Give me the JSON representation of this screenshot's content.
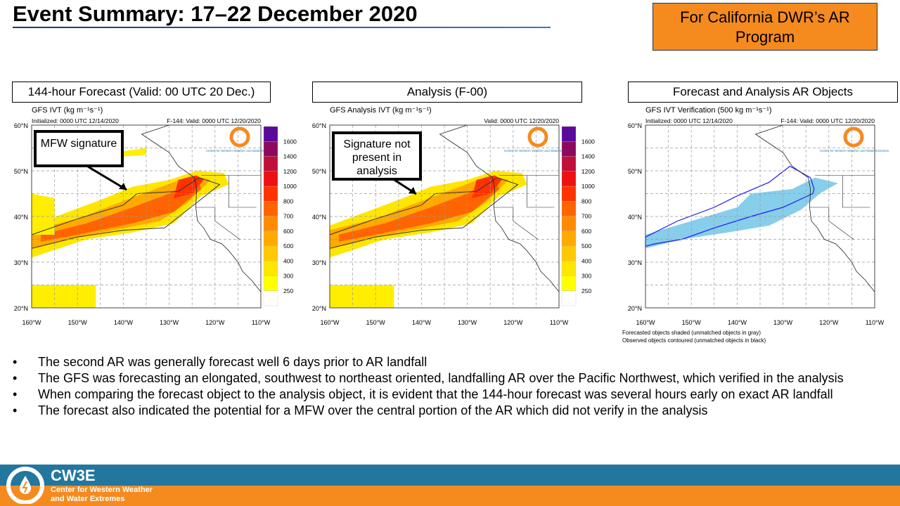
{
  "title": "Event Summary: 17–22 December 2020",
  "badge": "For California DWR’s AR Program",
  "panels": [
    {
      "header": "144-hour Forecast (Valid: 00 UTC 20 Dec.)",
      "plot_title": "GFS IVT (kg m⁻¹s⁻¹)",
      "left_info": "Initialized: 0000 UTC 12/14/2020",
      "right_info": "F-144: Valid: 0000 UTC 12/20/2020",
      "callout": "MFW signature",
      "mode": "forecast"
    },
    {
      "header": "Analysis (F-00)",
      "plot_title": "GFS Analysis IVT (kg m⁻¹s⁻¹)",
      "left_info": "",
      "right_info": "Valid: 0000 UTC 12/20/2020",
      "callout": "Signature not present in analysis",
      "mode": "analysis"
    },
    {
      "header": "Forecast and Analysis AR Objects",
      "plot_title": "GFS IVT Verification (500 kg m⁻¹s⁻¹)",
      "left_info": "Initialized: 0000 UTC 12/14/2020",
      "right_info": "F-144: Valid: 0000 UTC 12/20/2020",
      "mode": "objects",
      "notes": [
        "Forecasted objects shaded (unmatched objects in gray)",
        "Observed objects contoured (unmatched objects in black)"
      ]
    }
  ],
  "lat_labels": [
    "20°N",
    "30°N",
    "40°N",
    "50°N",
    "60°N"
  ],
  "lon_labels": [
    "160°W",
    "150°W",
    "140°W",
    "130°W",
    "120°W",
    "110°W"
  ],
  "colorbar": {
    "labels": [
      "250",
      "300",
      "400",
      "500",
      "600",
      "700",
      "800",
      "1000",
      "1200",
      "1400",
      "1600"
    ],
    "colors": [
      "#ffffff",
      "#ffff00",
      "#ffe600",
      "#ffc800",
      "#ffaa00",
      "#ff8c00",
      "#ff6400",
      "#ff3200",
      "#ee1111",
      "#c0103a",
      "#8b0a60",
      "#5a0a9a"
    ]
  },
  "logo_text": "Center for Western Weather and Water Extremes",
  "bullets": [
    "The second AR was generally forecast well 6 days prior to AR landfall",
    "The GFS was forecasting an elongated, southwest to northeast oriented, landfalling AR over the Pacific Northwest, which verified in the analysis",
    "When comparing the forecast object to the analysis object, it is evident that the 144-hour forecast was several hours early on exact AR landfall",
    "The forecast also indicated the potential for a MFW over the central portion of the AR which did not verify in the analysis"
  ],
  "footer": {
    "name": "CW3E",
    "line1": "Center for Western Weather",
    "line2": "and Water Extremes"
  },
  "colors": {
    "orange": "#f58a1f",
    "blue": "#23769e",
    "object": "#87ceeb",
    "contour": "#1a1aff"
  }
}
